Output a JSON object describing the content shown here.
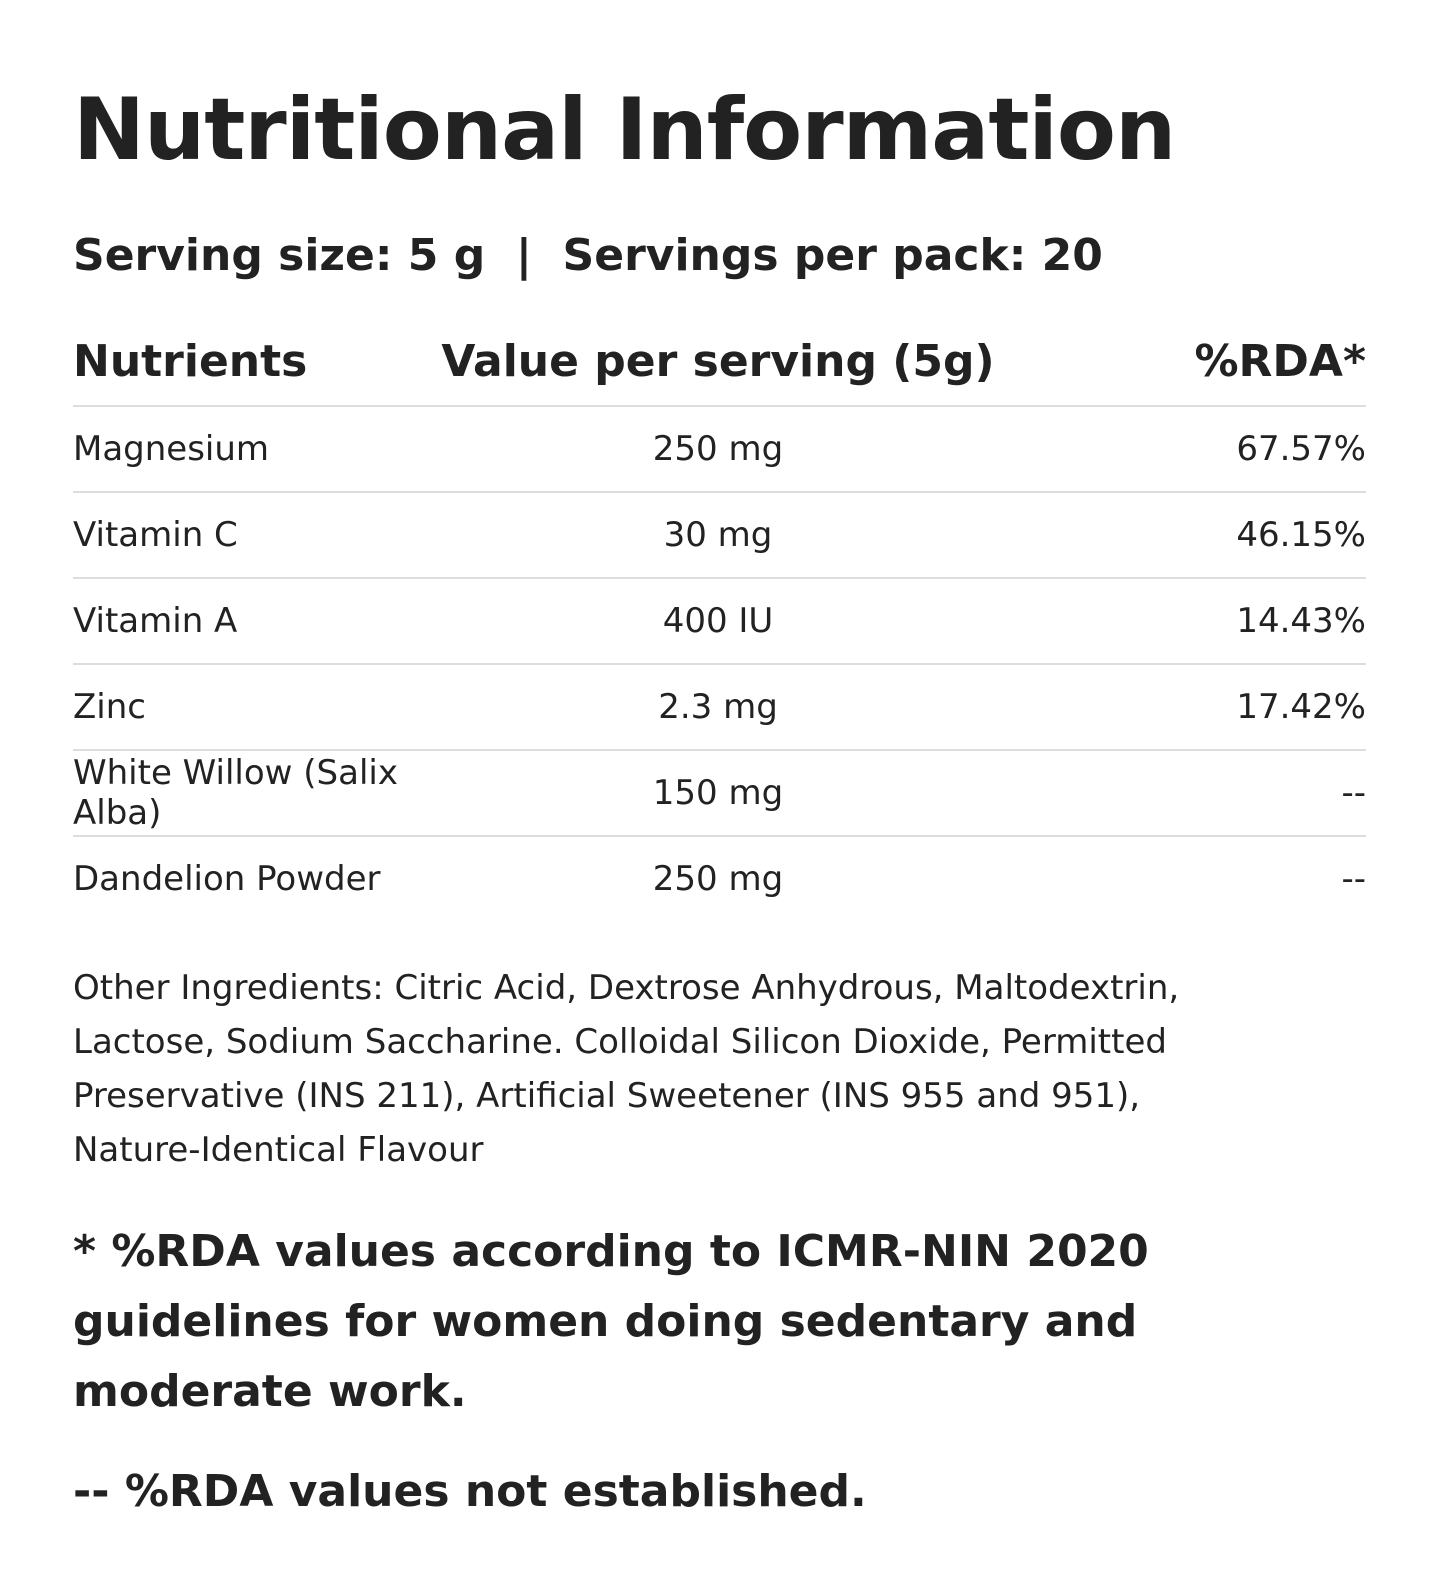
{
  "header": {
    "title": "Nutritional Information",
    "serving": "Serving size: 5 g  |  Servings per pack: 20"
  },
  "table": {
    "columns": [
      "Nutrients",
      "Value per serving (5g)",
      "%RDA*"
    ],
    "rows": [
      [
        "Magnesium",
        "250 mg",
        "67.57%"
      ],
      [
        "Vitamin C",
        "30 mg",
        "46.15%"
      ],
      [
        "Vitamin A",
        "400 IU",
        "14.43%"
      ],
      [
        "Zinc",
        "2.3 mg",
        "17.42%"
      ],
      [
        "White Willow (Salix Alba)",
        "150 mg",
        "--"
      ],
      [
        "Dandelion Powder",
        "250 mg",
        "--"
      ]
    ]
  },
  "ingredients": "Other Ingredients: Citric Acid, Dextrose Anhydrous, Maltodextrin, Lactose, Sodium Saccharine. Colloidal Silicon Dioxide, Permitted Preservative (INS 211), Artificial Sweetener (INS 955 and 951), Nature-Identical Flavour",
  "notes": [
    "* %RDA values according to ICMR-NIN 2020 guidelines for women doing sedentary and moderate work.",
    "-- %RDA values not established."
  ]
}
